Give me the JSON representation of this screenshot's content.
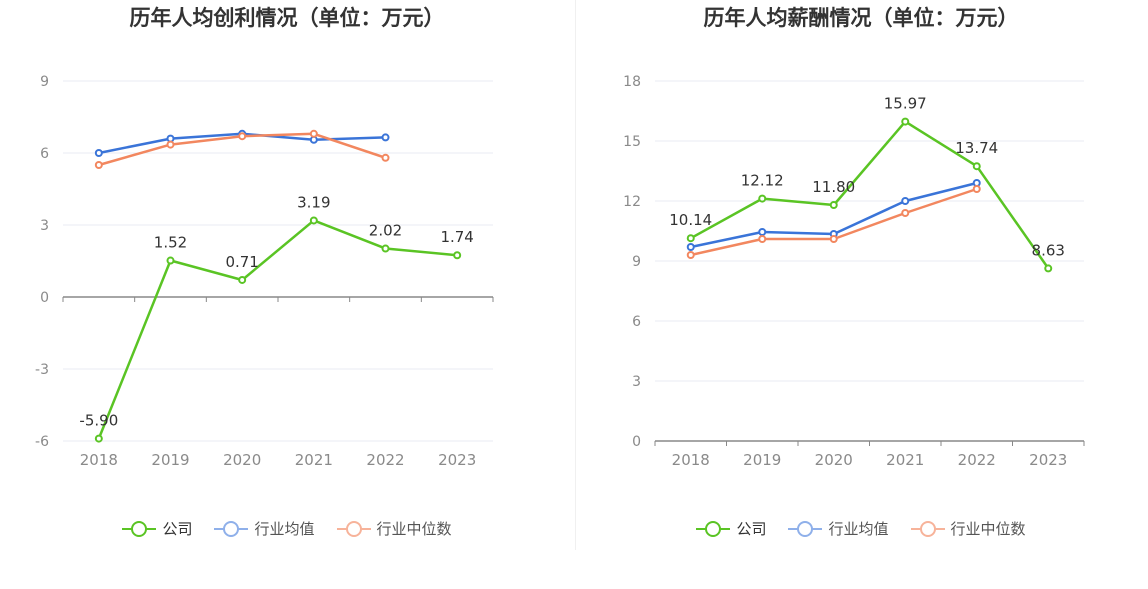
{
  "chart_data": [
    {
      "type": "line",
      "title": "历年人均创利情况（单位：万元）",
      "categories": [
        "2018",
        "2019",
        "2020",
        "2021",
        "2022",
        "2023"
      ],
      "yticks": [
        -6,
        -3,
        0,
        3,
        6,
        9
      ],
      "ylim": [
        -6,
        9
      ],
      "grid": true,
      "legend": "bottom",
      "series": [
        {
          "name": "公司",
          "color": "#5ac424",
          "values": [
            -5.9,
            1.52,
            0.71,
            3.19,
            2.02,
            1.74
          ],
          "labels": [
            "-5.90",
            "1.52",
            "0.71",
            "3.19",
            "2.02",
            "1.74"
          ]
        },
        {
          "name": "行业均值",
          "color": "#3a74d8",
          "values": [
            6.0,
            6.6,
            6.8,
            6.55,
            6.65,
            null
          ]
        },
        {
          "name": "行业中位数",
          "color": "#f2875f",
          "values": [
            5.5,
            6.35,
            6.7,
            6.8,
            5.8,
            null
          ]
        }
      ]
    },
    {
      "type": "line",
      "title": "历年人均薪酬情况（单位：万元）",
      "categories": [
        "2018",
        "2019",
        "2020",
        "2021",
        "2022",
        "2023"
      ],
      "yticks": [
        0,
        3,
        6,
        9,
        12,
        15,
        18
      ],
      "ylim": [
        0,
        18
      ],
      "grid": true,
      "legend": "bottom",
      "series": [
        {
          "name": "公司",
          "color": "#5ac424",
          "values": [
            10.14,
            12.12,
            11.8,
            15.97,
            13.74,
            8.63
          ],
          "labels": [
            "10.14",
            "12.12",
            "11.80",
            "15.97",
            "13.74",
            "8.63"
          ]
        },
        {
          "name": "行业均值",
          "color": "#3a74d8",
          "values": [
            9.7,
            10.45,
            10.35,
            12.0,
            12.9,
            null
          ]
        },
        {
          "name": "行业中位数",
          "color": "#f2875f",
          "values": [
            9.3,
            10.1,
            10.1,
            11.4,
            12.6,
            null
          ]
        }
      ]
    }
  ]
}
